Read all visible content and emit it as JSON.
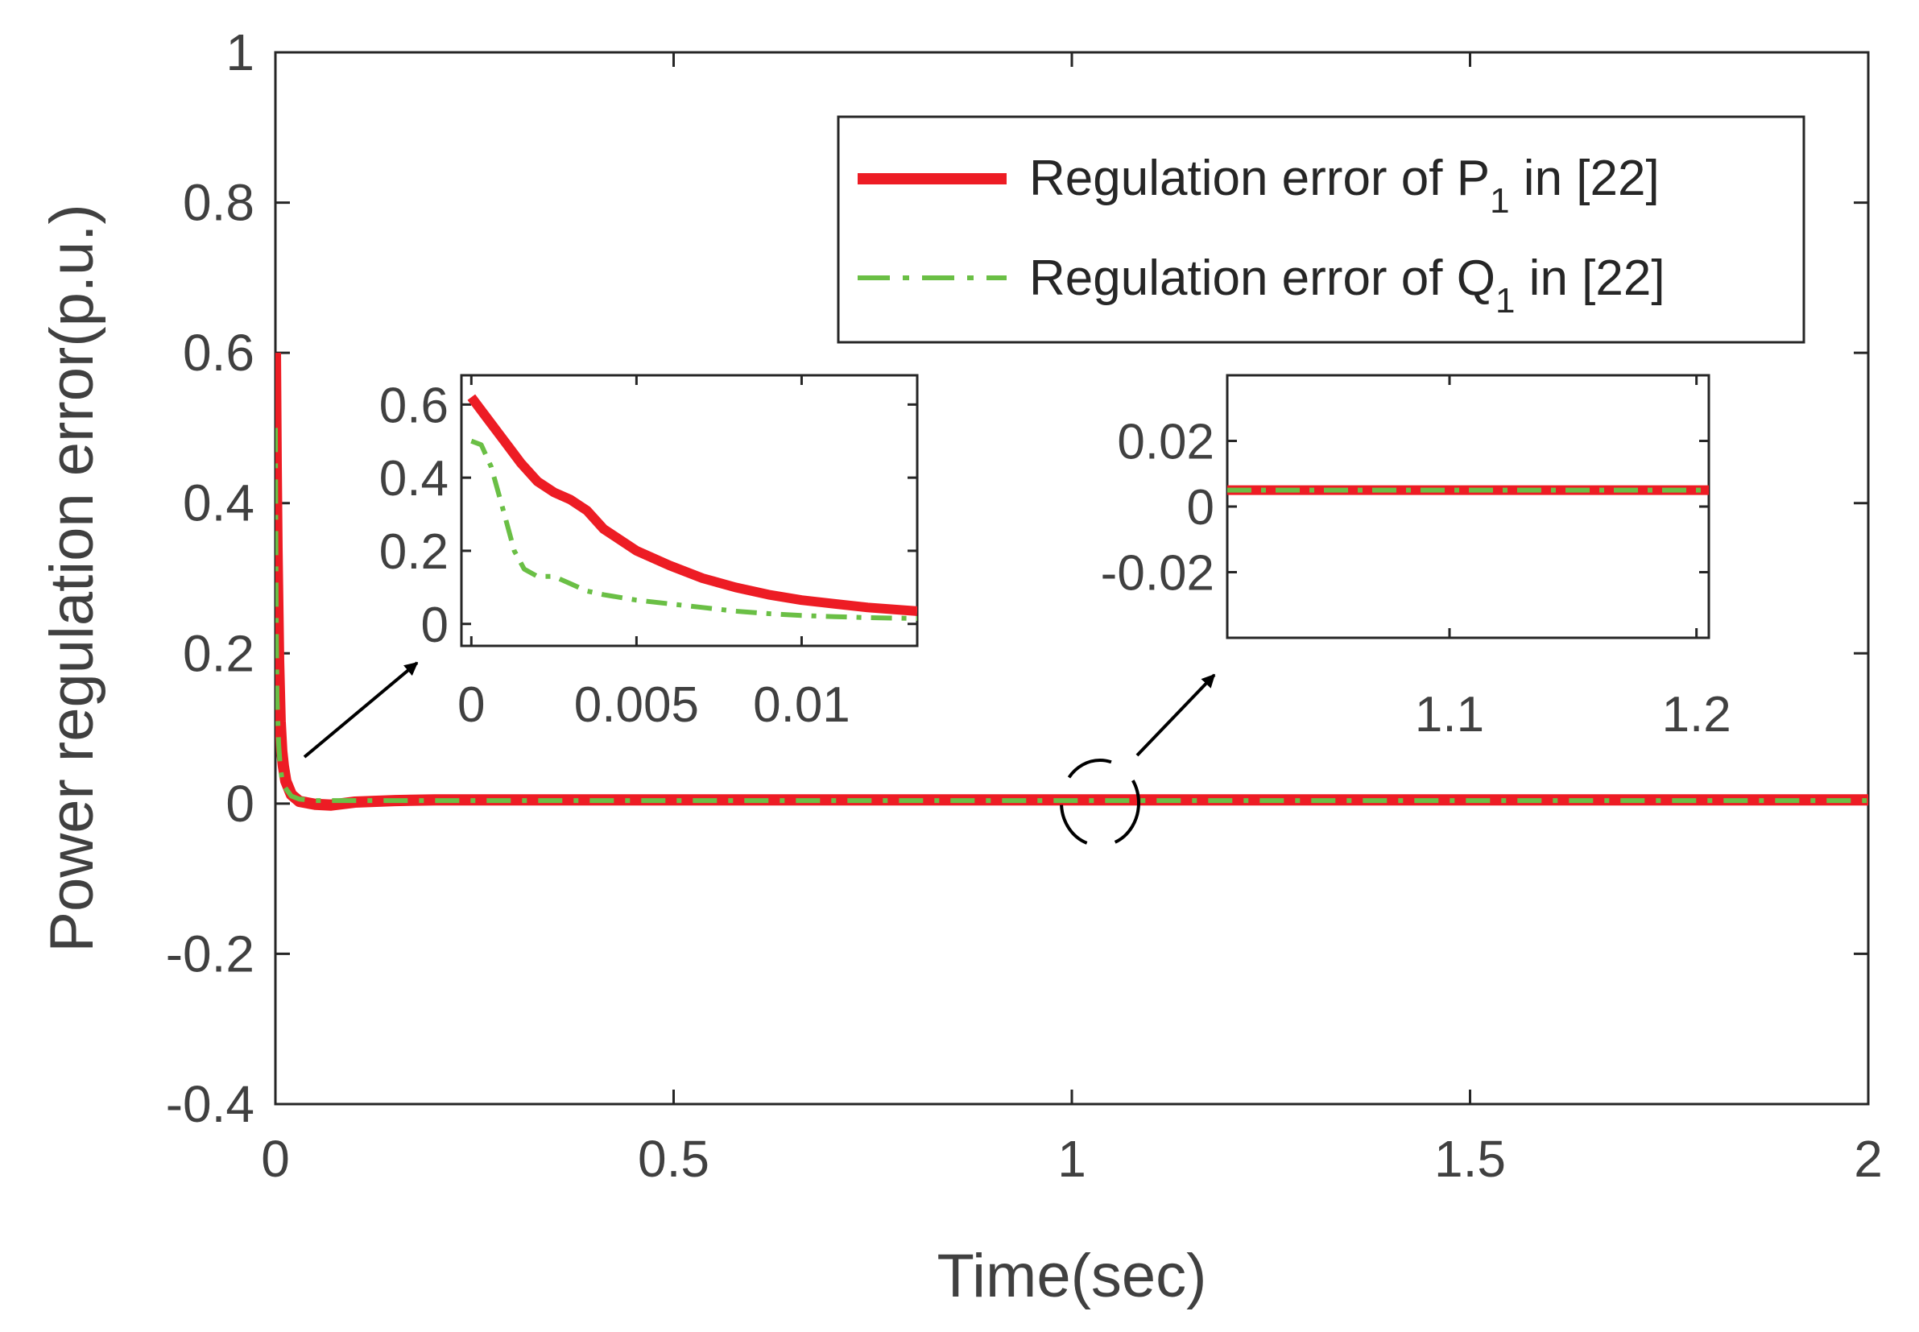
{
  "chart_data": [
    {
      "id": "main",
      "type": "line",
      "xlabel": "Time(sec)",
      "ylabel": "Power regulation error(p.u.)",
      "xlim": [
        0,
        2
      ],
      "ylim": [
        -0.4,
        1
      ],
      "xticks": [
        0,
        0.5,
        1,
        1.5,
        2
      ],
      "xtick_labels": [
        "0",
        "0.5",
        "1",
        "1.5",
        "2"
      ],
      "yticks": [
        -0.4,
        -0.2,
        0,
        0.2,
        0.4,
        0.6,
        0.8,
        1
      ],
      "ytick_labels": [
        "-0.4",
        "-0.2",
        "0",
        "0.2",
        "0.4",
        "0.6",
        "0.8",
        "1"
      ],
      "grid": false,
      "legend_position": "top-right",
      "series": [
        {
          "name": "Regulation error of P",
          "subscript": "1",
          "suffix": " in [22]",
          "color": "#ed1c24",
          "style": "solid",
          "x": [
            0,
            0.001,
            0.002,
            0.004,
            0.006,
            0.008,
            0.01,
            0.013,
            0.02,
            0.03,
            0.05,
            0.07,
            0.1,
            0.15,
            0.2,
            0.5,
            1,
            1.5,
            2
          ],
          "y": [
            0.6,
            0.45,
            0.34,
            0.19,
            0.11,
            0.07,
            0.05,
            0.03,
            0.012,
            0.003,
            -0.001,
            -0.002,
            0.002,
            0.004,
            0.005,
            0.005,
            0.005,
            0.005,
            0.005
          ]
        },
        {
          "name": "Regulation error of Q",
          "subscript": "1",
          "suffix": " in [22]",
          "color": "#6abf45",
          "style": "dashdot",
          "x": [
            0,
            0.001,
            0.002,
            0.004,
            0.006,
            0.008,
            0.01,
            0.013,
            0.02,
            0.03,
            0.05,
            0.1,
            0.2,
            0.5,
            1,
            1.5,
            2
          ],
          "y": [
            0.5,
            0.25,
            0.14,
            0.08,
            0.05,
            0.035,
            0.025,
            0.02,
            0.01,
            0.006,
            0.004,
            0.004,
            0.004,
            0.004,
            0.004,
            0.004,
            0.004
          ]
        }
      ],
      "annotations": [
        "zoom-arrow-left",
        "zoom-arrow-right",
        "dashed-circle-at-t1"
      ]
    },
    {
      "id": "inset1",
      "type": "line",
      "xlim": [
        -0.0003,
        0.0135
      ],
      "ylim": [
        -0.06,
        0.68
      ],
      "xticks": [
        0,
        0.005,
        0.01
      ],
      "xtick_labels": [
        "0",
        "0.005",
        "0.01"
      ],
      "yticks": [
        0,
        0.2,
        0.4,
        0.6
      ],
      "ytick_labels": [
        "0",
        "0.2",
        "0.4",
        "0.6"
      ],
      "series": [
        {
          "name": "P1",
          "color": "#ed1c24",
          "style": "solid",
          "x": [
            0,
            0.0005,
            0.001,
            0.0015,
            0.002,
            0.0025,
            0.003,
            0.0035,
            0.004,
            0.005,
            0.006,
            0.007,
            0.008,
            0.009,
            0.01,
            0.011,
            0.012,
            0.0135
          ],
          "y": [
            0.62,
            0.56,
            0.5,
            0.44,
            0.39,
            0.36,
            0.34,
            0.31,
            0.26,
            0.2,
            0.16,
            0.125,
            0.1,
            0.08,
            0.065,
            0.055,
            0.045,
            0.035
          ]
        },
        {
          "name": "Q1",
          "color": "#6abf45",
          "style": "dashdot",
          "x": [
            0,
            0.0003,
            0.0006,
            0.001,
            0.0013,
            0.0016,
            0.002,
            0.0025,
            0.003,
            0.0035,
            0.004,
            0.005,
            0.006,
            0.007,
            0.008,
            0.009,
            0.01,
            0.011,
            0.012,
            0.0135
          ],
          "y": [
            0.5,
            0.49,
            0.43,
            0.3,
            0.2,
            0.15,
            0.13,
            0.13,
            0.11,
            0.09,
            0.08,
            0.065,
            0.055,
            0.045,
            0.035,
            0.028,
            0.023,
            0.02,
            0.017,
            0.015
          ]
        }
      ]
    },
    {
      "id": "inset2",
      "type": "line",
      "xlim": [
        1.01,
        1.205
      ],
      "ylim": [
        -0.04,
        0.04
      ],
      "xticks": [
        1.1,
        1.2
      ],
      "xtick_labels": [
        "1.1",
        "1.2"
      ],
      "yticks": [
        -0.02,
        0,
        0.02
      ],
      "ytick_labels": [
        "-0.02",
        "0",
        "0.02"
      ],
      "series": [
        {
          "name": "P1",
          "color": "#ed1c24",
          "style": "solid",
          "x": [
            1.01,
            1.205
          ],
          "y": [
            0.005,
            0.005
          ]
        },
        {
          "name": "Q1",
          "color": "#6abf45",
          "style": "dashdot",
          "x": [
            1.01,
            1.205
          ],
          "y": [
            0.005,
            0.005
          ]
        }
      ]
    }
  ]
}
